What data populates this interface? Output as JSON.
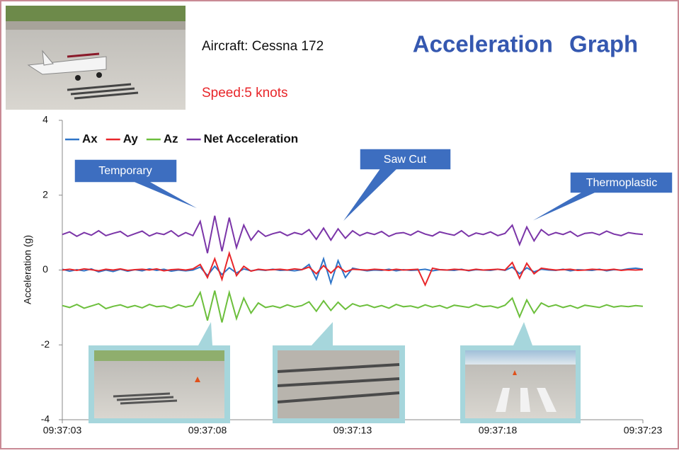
{
  "chart_data": {
    "type": "line",
    "header": {
      "aircraft": "Aircraft: Cessna 172",
      "speed": "Speed:5 knots",
      "title": "Acceleration Graph"
    },
    "y_label": "Acceleration (g)",
    "annotations": [
      "Temporary",
      "Saw Cut",
      "Thermoplastic"
    ],
    "x": [
      0,
      0.25,
      0.5,
      0.75,
      1,
      1.25,
      1.5,
      1.75,
      2,
      2.25,
      2.5,
      2.75,
      3,
      3.25,
      3.5,
      3.75,
      4,
      4.25,
      4.5,
      4.75,
      5,
      5.25,
      5.5,
      5.75,
      6,
      6.25,
      6.5,
      6.75,
      7,
      7.25,
      7.5,
      7.75,
      8,
      8.25,
      8.5,
      8.75,
      9,
      9.25,
      9.5,
      9.75,
      10,
      10.25,
      10.5,
      10.75,
      11,
      11.25,
      11.5,
      11.75,
      12,
      12.25,
      12.5,
      12.75,
      13,
      13.25,
      13.5,
      13.75,
      14,
      14.25,
      14.5,
      14.75,
      15,
      15.25,
      15.5,
      15.75,
      16,
      16.25,
      16.5,
      16.75,
      17,
      17.25,
      17.5,
      17.75,
      18,
      18.25,
      18.5,
      18.75,
      19,
      19.25,
      19.5,
      19.75,
      20
    ],
    "xlim": [
      0,
      20
    ],
    "xticks": [
      {
        "value": 0,
        "label": "09:37:03"
      },
      {
        "value": 5,
        "label": "09:37:08"
      },
      {
        "value": 10,
        "label": "09:37:13"
      },
      {
        "value": 15,
        "label": "09:37:18"
      },
      {
        "value": 20,
        "label": "09:37:23"
      }
    ],
    "ylim": [
      -4,
      4
    ],
    "yticks": [
      4,
      2,
      0,
      -2,
      -4
    ],
    "series": [
      {
        "name": "Ax",
        "color": "#2e75c8",
        "values": [
          0.02,
          -0.03,
          0.01,
          -0.02,
          0.03,
          -0.05,
          0.0,
          -0.04,
          0.02,
          -0.03,
          0.01,
          -0.02,
          0.03,
          -0.01,
          0.02,
          -0.03,
          0.0,
          -0.02,
          0.0,
          0.08,
          -0.15,
          0.1,
          -0.12,
          0.06,
          -0.08,
          0.03,
          -0.02,
          0.01,
          -0.01,
          0.02,
          -0.01,
          0.0,
          -0.02,
          0.01,
          0.15,
          -0.25,
          0.3,
          -0.35,
          0.25,
          -0.2,
          0.05,
          0.01,
          -0.02,
          0.0,
          -0.01,
          0.02,
          -0.02,
          0.01,
          -0.01,
          0.0,
          0.02,
          -0.02,
          0.01,
          0.0,
          -0.01,
          0.02,
          -0.02,
          0.01,
          0.0,
          -0.01,
          0.02,
          -0.01,
          0.08,
          -0.1,
          0.06,
          -0.05,
          0.02,
          0.0,
          -0.01,
          0.02,
          -0.02,
          0.01,
          0.0,
          -0.01,
          0.02,
          -0.02,
          0.01,
          0.0,
          0.03,
          0.05,
          0.02
        ]
      },
      {
        "name": "Ay",
        "color": "#e8262a",
        "values": [
          0.0,
          0.02,
          -0.01,
          0.03,
          0.01,
          -0.02,
          0.02,
          0.0,
          0.03,
          -0.01,
          0.01,
          0.02,
          0.0,
          0.03,
          -0.02,
          0.01,
          0.02,
          0.0,
          0.03,
          0.15,
          -0.2,
          0.3,
          -0.25,
          0.45,
          -0.15,
          0.1,
          -0.03,
          0.02,
          0.0,
          0.01,
          0.02,
          0.0,
          0.03,
          0.01,
          0.08,
          -0.1,
          0.12,
          -0.08,
          0.1,
          -0.05,
          0.02,
          0.01,
          0.0,
          0.02,
          0.01,
          -0.01,
          0.02,
          0.0,
          0.01,
          0.02,
          -0.4,
          0.05,
          0.01,
          0.0,
          0.02,
          0.01,
          -0.01,
          0.02,
          0.0,
          0.01,
          0.02,
          0.0,
          0.2,
          -0.22,
          0.18,
          -0.1,
          0.05,
          0.02,
          0.0,
          0.01,
          0.02,
          -0.01,
          0.0,
          0.02,
          0.01,
          0.0,
          0.02,
          -0.01,
          0.01,
          0.0,
          0.01
        ]
      },
      {
        "name": "Az",
        "color": "#6cbf3c",
        "values": [
          -0.95,
          -1.0,
          -0.92,
          -1.02,
          -0.96,
          -0.9,
          -1.03,
          -0.97,
          -0.93,
          -1.0,
          -0.95,
          -1.01,
          -0.92,
          -0.98,
          -0.96,
          -1.02,
          -0.93,
          -0.99,
          -0.95,
          -0.6,
          -1.35,
          -0.55,
          -1.4,
          -0.6,
          -1.3,
          -0.75,
          -1.15,
          -0.88,
          -1.0,
          -0.96,
          -1.01,
          -0.93,
          -0.99,
          -0.95,
          -0.85,
          -1.1,
          -0.82,
          -1.08,
          -0.86,
          -1.05,
          -0.9,
          -0.97,
          -0.93,
          -1.0,
          -0.95,
          -1.02,
          -0.92,
          -0.98,
          -0.96,
          -1.01,
          -0.93,
          -0.99,
          -0.95,
          -1.02,
          -0.94,
          -0.97,
          -1.0,
          -0.92,
          -0.98,
          -0.96,
          -1.01,
          -0.94,
          -0.75,
          -1.25,
          -0.8,
          -1.15,
          -0.88,
          -0.98,
          -0.93,
          -1.0,
          -0.95,
          -1.02,
          -0.94,
          -0.97,
          -1.0,
          -0.93,
          -0.99,
          -0.96,
          -0.98,
          -0.95,
          -0.97
        ]
      },
      {
        "name": "Net Acceleration",
        "color": "#7b35a8",
        "values": [
          0.95,
          1.02,
          0.9,
          1.0,
          0.93,
          1.05,
          0.92,
          0.98,
          1.03,
          0.9,
          0.97,
          1.04,
          0.91,
          0.99,
          0.95,
          1.05,
          0.9,
          1.0,
          0.92,
          1.3,
          0.45,
          1.45,
          0.5,
          1.4,
          0.6,
          1.2,
          0.8,
          1.05,
          0.9,
          0.97,
          1.02,
          0.92,
          1.0,
          0.95,
          1.08,
          0.82,
          1.12,
          0.8,
          1.1,
          0.85,
          1.05,
          0.92,
          1.0,
          0.95,
          1.03,
          0.9,
          0.98,
          1.0,
          0.93,
          1.04,
          0.96,
          0.91,
          1.02,
          0.97,
          0.93,
          1.05,
          0.9,
          0.99,
          0.95,
          1.02,
          0.92,
          0.98,
          1.2,
          0.68,
          1.15,
          0.78,
          1.08,
          0.93,
          1.0,
          0.95,
          1.03,
          0.9,
          0.98,
          1.0,
          0.94,
          1.04,
          0.96,
          0.92,
          1.0,
          0.97,
          0.95
        ]
      }
    ]
  }
}
